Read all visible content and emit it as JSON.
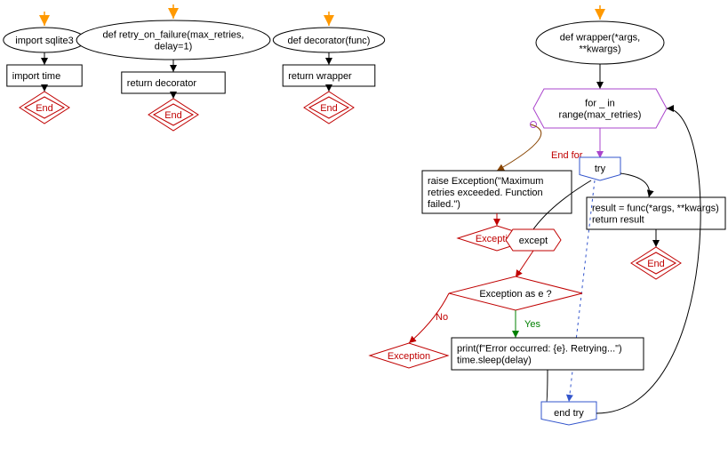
{
  "colors": {
    "background": "#ffffff",
    "box_stroke": "#000000",
    "box_fill": "#ffffff",
    "ellipse_stroke": "#000000",
    "ellipse_fill": "#ffffff",
    "end_stroke": "#c00000",
    "end_fill": "#ffffff",
    "arrow_entry": "#ff9900",
    "loop_stroke": "#aa44cc",
    "try_stroke": "#3355cc",
    "except_stroke": "#c00000",
    "decision_stroke": "#c00000",
    "edge_default": "#000000",
    "edge_endfor": "#884400",
    "edge_dotted": "#3355cc",
    "yes_label": "#008000",
    "no_label": "#c00000"
  },
  "labels": {
    "end": "End",
    "endfor": "End for",
    "yes": "Yes",
    "no": "No",
    "try": "try",
    "except": "except",
    "end_try": "end try",
    "exception": "Exception"
  },
  "columns": [
    {
      "id": "col1",
      "ellipse": "import sqlite3",
      "box": "import time"
    },
    {
      "id": "col2",
      "ellipse_lines": [
        "def retry_on_failure(max_retries,",
        "delay=1)"
      ],
      "box": "return decorator"
    },
    {
      "id": "col3",
      "ellipse": "def decorator(func)",
      "box": "return wrapper"
    }
  ],
  "main": {
    "wrapper_lines": [
      "def wrapper(*args,",
      "**kwargs)"
    ],
    "loop_lines": [
      "for _ in",
      "range(max_retries)"
    ],
    "raise_lines": [
      "raise Exception(\"Maximum",
      "retries exceeded. Function",
      "failed.\")"
    ],
    "try_body_lines": [
      "result = func(*args, **kwargs)",
      "return result"
    ],
    "decision": "Exception as e ?",
    "handler_lines": [
      "print(f\"Error occurred: {e}. Retrying...\")",
      "time.sleep(delay)"
    ]
  }
}
